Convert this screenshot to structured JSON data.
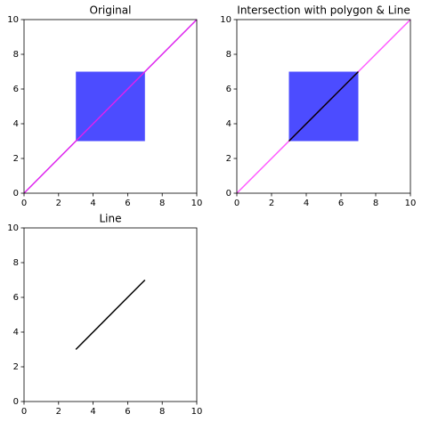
{
  "chart_data": [
    {
      "type": "shapes",
      "title": "Original",
      "xlim": [
        0,
        10
      ],
      "ylim": [
        0,
        10
      ],
      "xticks": [
        0,
        2,
        4,
        6,
        8,
        10
      ],
      "yticks": [
        0,
        2,
        4,
        6,
        8,
        10
      ],
      "series": [
        {
          "kind": "polygon",
          "color": "#0000ff",
          "opacity": 0.7,
          "x": [
            3,
            7,
            7,
            3
          ],
          "y": [
            3,
            3,
            7,
            7
          ]
        },
        {
          "kind": "line",
          "color": "#dd22ee",
          "opacity": 1,
          "x": [
            0,
            10
          ],
          "y": [
            0,
            10
          ]
        }
      ]
    },
    {
      "type": "shapes",
      "title": "Intersection with polygon & Line",
      "xlim": [
        0,
        10
      ],
      "ylim": [
        0,
        10
      ],
      "xticks": [
        0,
        2,
        4,
        6,
        8,
        10
      ],
      "yticks": [
        0,
        2,
        4,
        6,
        8,
        10
      ],
      "series": [
        {
          "kind": "polygon",
          "color": "#0000ff",
          "opacity": 0.7,
          "x": [
            3,
            7,
            7,
            3
          ],
          "y": [
            3,
            3,
            7,
            7
          ]
        },
        {
          "kind": "line",
          "color": "#ff00ff",
          "opacity": 0.65,
          "x": [
            0,
            10
          ],
          "y": [
            0,
            10
          ]
        },
        {
          "kind": "line",
          "color": "#000000",
          "opacity": 1,
          "x": [
            3,
            7
          ],
          "y": [
            3,
            7
          ]
        }
      ]
    },
    {
      "type": "shapes",
      "title": "Line",
      "xlim": [
        0,
        10
      ],
      "ylim": [
        0,
        10
      ],
      "xticks": [
        0,
        2,
        4,
        6,
        8,
        10
      ],
      "yticks": [
        0,
        2,
        4,
        6,
        8,
        10
      ],
      "series": [
        {
          "kind": "line",
          "color": "#000000",
          "opacity": 1,
          "x": [
            3,
            7
          ],
          "y": [
            3,
            7
          ]
        }
      ]
    }
  ]
}
